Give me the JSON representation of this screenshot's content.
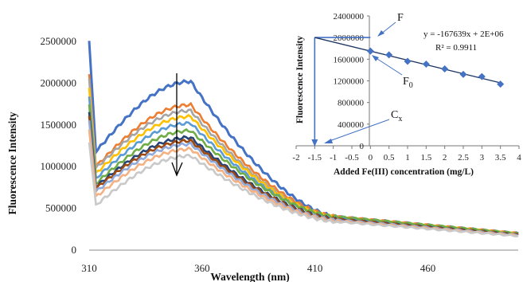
{
  "chart_data": [
    {
      "type": "line",
      "title": "",
      "xlabel": "Wavelength (nm)",
      "ylabel": "Fluorescence Intensity",
      "xlim": [
        310,
        500
      ],
      "ylim": [
        0,
        2500000
      ],
      "x_ticks": [
        "310",
        "360",
        "410",
        "460"
      ],
      "y_ticks": [
        "0",
        "500000",
        "1000000",
        "1500000",
        "2000000",
        "2500000"
      ],
      "grid": false,
      "legend": "none",
      "annotation": "downward arrow indicating decreasing intensity",
      "series": [
        {
          "color": "#4472c4",
          "peak": 2020000,
          "base": 1180000,
          "edge": 2500000,
          "tail": 200000
        },
        {
          "color": "#ed7d31",
          "peak": 1740000,
          "base": 1000000,
          "edge": 2100000,
          "tail": 200000
        },
        {
          "color": "#a5a5a5",
          "peak": 1670000,
          "base": 980000,
          "edge": 2050000,
          "tail": 190000
        },
        {
          "color": "#ffc000",
          "peak": 1600000,
          "base": 920000,
          "edge": 1950000,
          "tail": 195000
        },
        {
          "color": "#5b9bd5",
          "peak": 1520000,
          "base": 860000,
          "edge": 1850000,
          "tail": 190000
        },
        {
          "color": "#70ad47",
          "peak": 1430000,
          "base": 800000,
          "edge": 1750000,
          "tail": 200000
        },
        {
          "color": "#264478",
          "peak": 1350000,
          "base": 760000,
          "edge": 1650000,
          "tail": 185000
        },
        {
          "color": "#9e480e",
          "peak": 1310000,
          "base": 740000,
          "edge": 1600000,
          "tail": 185000
        },
        {
          "color": "#8faadc",
          "peak": 1270000,
          "base": 700000,
          "edge": 1550000,
          "tail": 180000
        },
        {
          "color": "#f4b183",
          "peak": 1210000,
          "base": 640000,
          "edge": 1450000,
          "tail": 175000
        },
        {
          "color": "#c9c9c9",
          "peak": 1130000,
          "base": 540000,
          "edge": 1300000,
          "tail": 170000
        }
      ]
    },
    {
      "type": "scatter",
      "title": "",
      "xlabel": "Added Fe(III) concentration (mg/L)",
      "ylabel": "Fluorescence Intensity",
      "xlim": [
        -2,
        4
      ],
      "ylim": [
        0,
        2400000
      ],
      "x_ticks": [
        "-2",
        "-1.5",
        "-1",
        "-0.5",
        "0",
        "0.5",
        "1",
        "1.5",
        "2",
        "2.5",
        "3",
        "3.5",
        "4"
      ],
      "y_ticks": [
        "0",
        "400000",
        "800000",
        "1200000",
        "1600000",
        "2000000",
        "2400000"
      ],
      "grid": false,
      "points": {
        "x": [
          0,
          0.5,
          1,
          1.5,
          2,
          2.5,
          3,
          3.5
        ],
        "y": [
          1750000,
          1680000,
          1560000,
          1510000,
          1420000,
          1320000,
          1280000,
          1140000
        ]
      },
      "trendline": {
        "slope": -167639,
        "intercept": 1750000,
        "x_range": [
          -1.5,
          3.5
        ],
        "color": "#1f3864"
      },
      "equation": "y = -167639x + 2E+06",
      "r_squared": "R² = 0.9911",
      "labels": {
        "F": "F",
        "F0": "F",
        "F0_sub": "0",
        "Cx": "C",
        "Cx_sub": "x"
      },
      "marker_color": "#4472c4",
      "guide_color": "#4472c4"
    }
  ]
}
